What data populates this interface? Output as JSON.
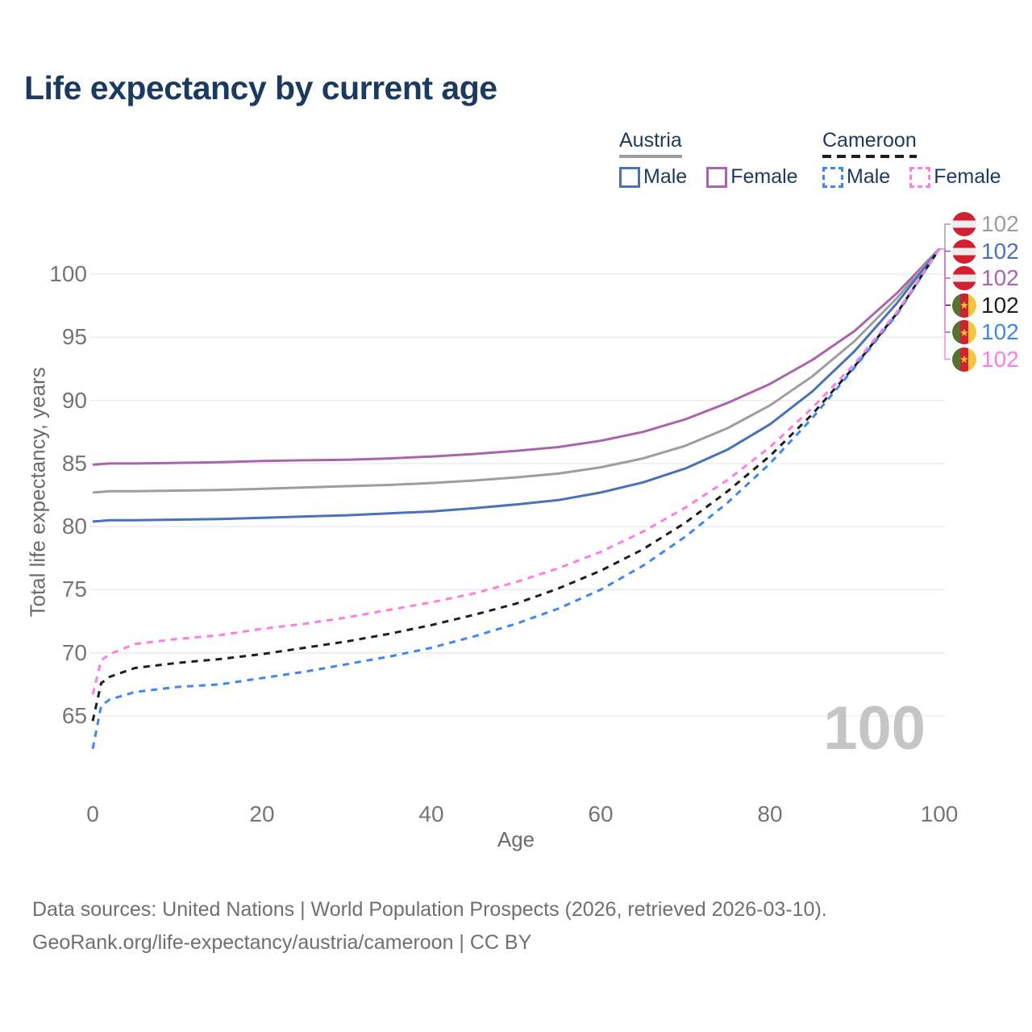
{
  "title": "Life expectancy by current age",
  "colors": {
    "title_text": "#1b3a5f",
    "axis_text": "#757575",
    "grid": "#e9e9e9",
    "watermark": "#c5c5c5",
    "footer_text": "#6f6f6f",
    "austria_both": "#9e9e9e",
    "austria_male": "#4a72b8",
    "austria_female": "#ab63ad",
    "cameroon_both": "#1e1e1e",
    "cameroon_male": "#3e87f2",
    "cameroon_female": "#ff7ce0"
  },
  "legend": {
    "groups": [
      {
        "label": "Austria",
        "line_style": "solid",
        "underline_color": "#9e9e9e",
        "items": [
          {
            "label": "Male",
            "color": "#4a72b8",
            "box_style": "solid"
          },
          {
            "label": "Female",
            "color": "#ab63ad",
            "box_style": "solid"
          }
        ]
      },
      {
        "label": "Cameroon",
        "line_style": "dashed",
        "underline_color": "#1e1e1e",
        "items": [
          {
            "label": "Male",
            "color": "#3e87f2",
            "box_style": "dashed"
          },
          {
            "label": "Female",
            "color": "#ff7ce0",
            "box_style": "dashed"
          }
        ]
      }
    ]
  },
  "chart_data": {
    "type": "line",
    "title": "Life expectancy by current age",
    "xlabel": "Age",
    "ylabel": "Total life expectancy, years",
    "xlim": [
      0,
      100
    ],
    "ylim": [
      62,
      103
    ],
    "xticks": [
      0,
      20,
      40,
      60,
      80,
      100
    ],
    "yticks": [
      65,
      70,
      75,
      80,
      85,
      90,
      95,
      100
    ],
    "grid": "horizontal-only",
    "x": [
      0,
      1,
      2,
      5,
      10,
      15,
      20,
      25,
      30,
      35,
      40,
      45,
      50,
      55,
      60,
      65,
      70,
      75,
      80,
      85,
      90,
      95,
      100
    ],
    "series": [
      {
        "name": "Austria Both sexes",
        "country": "Austria",
        "sex": "both",
        "style": "solid",
        "color": "#9e9e9e",
        "end_value": 102,
        "values": [
          82.7,
          82.75,
          82.8,
          82.8,
          82.85,
          82.9,
          83.0,
          83.1,
          83.2,
          83.3,
          83.45,
          83.65,
          83.9,
          84.2,
          84.7,
          85.4,
          86.4,
          87.8,
          89.6,
          91.9,
          94.7,
          98.1,
          102
        ]
      },
      {
        "name": "Austria Male",
        "country": "Austria",
        "sex": "male",
        "style": "solid",
        "color": "#4a72b8",
        "end_value": 102,
        "values": [
          80.4,
          80.45,
          80.5,
          80.5,
          80.55,
          80.6,
          80.7,
          80.8,
          80.9,
          81.05,
          81.2,
          81.45,
          81.75,
          82.1,
          82.7,
          83.5,
          84.6,
          86.1,
          88.1,
          90.7,
          93.9,
          97.7,
          102
        ]
      },
      {
        "name": "Austria Female",
        "country": "Austria",
        "sex": "female",
        "style": "solid",
        "color": "#ab63ad",
        "end_value": 102,
        "values": [
          84.9,
          84.95,
          85.0,
          85.0,
          85.05,
          85.1,
          85.2,
          85.25,
          85.3,
          85.4,
          85.55,
          85.75,
          86.0,
          86.3,
          86.8,
          87.5,
          88.5,
          89.8,
          91.3,
          93.2,
          95.5,
          98.5,
          102
        ]
      },
      {
        "name": "Cameroon Both sexes",
        "country": "Cameroon",
        "sex": "both",
        "style": "dashed",
        "color": "#1e1e1e",
        "end_value": 102,
        "values": [
          64.6,
          67.6,
          68.1,
          68.8,
          69.2,
          69.5,
          69.9,
          70.4,
          70.9,
          71.5,
          72.2,
          73.0,
          73.9,
          75.1,
          76.5,
          78.2,
          80.3,
          82.8,
          85.6,
          88.9,
          92.7,
          96.9,
          102
        ]
      },
      {
        "name": "Cameroon Male",
        "country": "Cameroon",
        "sex": "male",
        "style": "dashed",
        "color": "#3e87f2",
        "end_value": 102,
        "values": [
          62.4,
          65.8,
          66.3,
          66.9,
          67.3,
          67.5,
          68.0,
          68.5,
          69.1,
          69.7,
          70.4,
          71.3,
          72.3,
          73.5,
          75.0,
          76.9,
          79.2,
          81.9,
          85.0,
          88.6,
          92.6,
          96.8,
          102
        ]
      },
      {
        "name": "Cameroon Female",
        "country": "Cameroon",
        "sex": "female",
        "style": "dashed",
        "color": "#ff7ce0",
        "end_value": 102,
        "values": [
          66.7,
          69.4,
          69.9,
          70.7,
          71.1,
          71.4,
          71.9,
          72.3,
          72.8,
          73.4,
          74.0,
          74.7,
          75.6,
          76.7,
          78.0,
          79.6,
          81.5,
          83.7,
          86.3,
          89.4,
          92.9,
          97.0,
          102
        ]
      }
    ]
  },
  "end_labels": [
    {
      "flag": "austria-flag-icon",
      "country": "Austria",
      "value": "102",
      "color": "#9e9e9e"
    },
    {
      "flag": "austria-flag-icon",
      "country": "Austria",
      "value": "102",
      "color": "#4a72b8"
    },
    {
      "flag": "austria-flag-icon",
      "country": "Austria",
      "value": "102",
      "color": "#ab63ad"
    },
    {
      "flag": "cameroon-flag-icon",
      "country": "Cameroon",
      "value": "102",
      "color": "#1e1e1e"
    },
    {
      "flag": "cameroon-flag-icon",
      "country": "Cameroon",
      "value": "102",
      "color": "#3e87f2"
    },
    {
      "flag": "cameroon-flag-icon",
      "country": "Cameroon",
      "value": "102",
      "color": "#ff7ce0"
    }
  ],
  "watermark": "100",
  "footer": {
    "line1": "Data sources: United Nations | World Population Prospects (2026, retrieved 2026-03-10).",
    "line2": "GeoRank.org/life-expectancy/austria/cameroon | CC BY"
  }
}
